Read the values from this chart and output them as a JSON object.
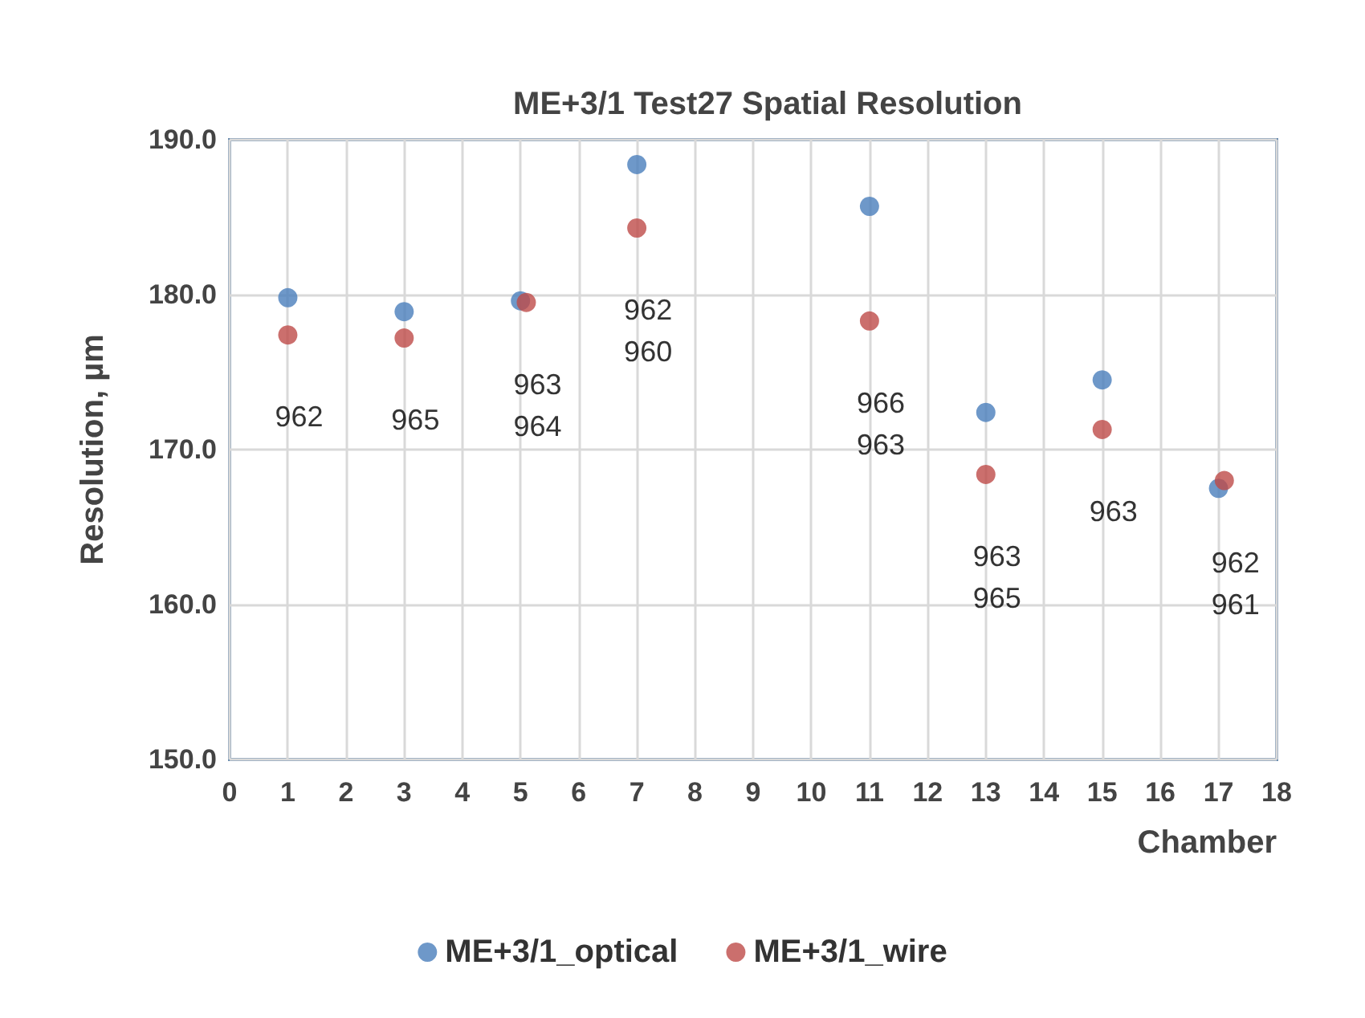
{
  "chart_data": {
    "type": "scatter",
    "title": "ME+3/1 Test27 Spatial Resolution",
    "xlabel": "Chamber",
    "ylabel": "Resolution, µm",
    "x": [
      1,
      3,
      5,
      7,
      11,
      13,
      15,
      17
    ],
    "series": [
      {
        "name": "ME+3/1_optical",
        "color": "#4a7ebb",
        "values": [
          179.8,
          178.9,
          179.6,
          188.4,
          185.7,
          172.4,
          174.5,
          167.5
        ]
      },
      {
        "name": "ME+3/1_wire",
        "color": "#be4b48",
        "x": [
          1,
          3,
          5.1,
          7,
          11,
          13,
          15,
          17.1
        ],
        "values": [
          177.4,
          177.2,
          179.5,
          184.3,
          178.3,
          168.4,
          171.3,
          168.0
        ]
      }
    ],
    "xlim": [
      0,
      18
    ],
    "xticks": [
      0,
      1,
      2,
      3,
      4,
      5,
      6,
      7,
      8,
      9,
      10,
      11,
      12,
      13,
      14,
      15,
      16,
      17,
      18
    ],
    "ylim": [
      150,
      190
    ],
    "yticks": [
      {
        "value": 150,
        "label": "150.0"
      },
      {
        "value": 160,
        "label": "160.0"
      },
      {
        "value": 170,
        "label": "170.0"
      },
      {
        "value": 180,
        "label": "180.0"
      },
      {
        "value": 190,
        "label": "190.0"
      }
    ],
    "grid": true,
    "legend": "bottom",
    "marker": "circle",
    "annotations": [
      {
        "text": "962",
        "x": 1,
        "y": 177.4
      },
      {
        "text": "965",
        "x": 3,
        "y": 177.2
      },
      {
        "text": "963\n964",
        "x": 5.1,
        "y": 179.5
      },
      {
        "text": "962\n960",
        "x": 7,
        "y": 184.3
      },
      {
        "text": "966\n963",
        "x": 11,
        "y": 178.3
      },
      {
        "text": "963\n965",
        "x": 13,
        "y": 168.4
      },
      {
        "text": "963",
        "x": 15,
        "y": 171.3
      },
      {
        "text": "962\n961",
        "x": 17.1,
        "y": 168.0
      }
    ]
  }
}
